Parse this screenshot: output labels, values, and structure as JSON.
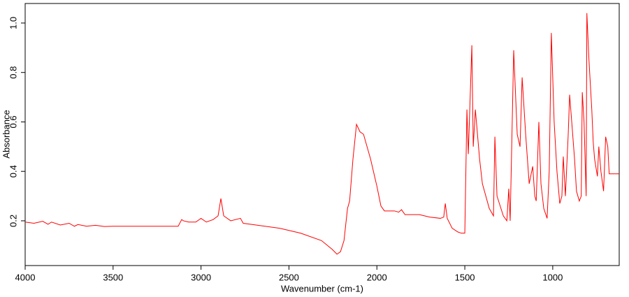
{
  "chart_data": {
    "type": "line",
    "x_label": "Wavenumber (cm-1)",
    "y_label": "Absorbance",
    "xlim": [
      4000,
      622
    ],
    "ylim": [
      0.019,
      1.079
    ],
    "xticks": [
      4000,
      3500,
      3000,
      2500,
      2000,
      1500,
      1000
    ],
    "yticks": [
      0.2,
      0.4,
      0.6,
      0.8,
      {
        "value": 1,
        "label": "1.0"
      }
    ],
    "reversed_x": true,
    "series": [
      {
        "name": "Absorbance",
        "color": "#ff0000",
        "x": [
          4000,
          3950,
          3900,
          3870,
          3850,
          3800,
          3750,
          3720,
          3700,
          3650,
          3600,
          3550,
          3500,
          3300,
          3130,
          3110,
          3100,
          3070,
          3030,
          3000,
          2970,
          2931,
          2903,
          2887,
          2871,
          2831,
          2776,
          2760,
          2553,
          2434,
          2315,
          2255,
          2227,
          2207,
          2187,
          2167,
          2155,
          2136,
          2116,
          2096,
          2076,
          2036,
          2000,
          1977,
          1957,
          1900,
          1876,
          1860,
          1840,
          1758,
          1700,
          1639,
          1620,
          1611,
          1600,
          1572,
          1540,
          1520,
          1500,
          1488,
          1480,
          1460,
          1452,
          1440,
          1428,
          1416,
          1400,
          1361,
          1337,
          1329,
          1317,
          1281,
          1261,
          1250,
          1242,
          1222,
          1202,
          1186,
          1174,
          1154,
          1134,
          1114,
          1102,
          1094,
          1079,
          1067,
          1051,
          1032,
          1020,
          1008,
          992,
          976,
          960,
          948,
          940,
          928,
          912,
          904,
          892,
          876,
          865,
          849,
          838,
          832,
          822,
          810,
          806,
          794,
          778,
          770,
          762,
          746,
          738,
          726,
          711,
          699,
          687,
          679,
          622
        ],
        "values": [
          0.195,
          0.19,
          0.198,
          0.186,
          0.195,
          0.183,
          0.19,
          0.178,
          0.185,
          0.178,
          0.182,
          0.177,
          0.178,
          0.178,
          0.178,
          0.205,
          0.2,
          0.195,
          0.195,
          0.21,
          0.195,
          0.205,
          0.22,
          0.29,
          0.22,
          0.2,
          0.21,
          0.19,
          0.17,
          0.15,
          0.12,
          0.085,
          0.065,
          0.075,
          0.12,
          0.25,
          0.28,
          0.45,
          0.59,
          0.56,
          0.55,
          0.45,
          0.34,
          0.26,
          0.24,
          0.24,
          0.235,
          0.245,
          0.225,
          0.225,
          0.215,
          0.21,
          0.215,
          0.27,
          0.21,
          0.17,
          0.155,
          0.15,
          0.15,
          0.65,
          0.47,
          0.91,
          0.5,
          0.65,
          0.55,
          0.45,
          0.35,
          0.25,
          0.22,
          0.54,
          0.3,
          0.22,
          0.2,
          0.33,
          0.2,
          0.89,
          0.55,
          0.5,
          0.78,
          0.55,
          0.35,
          0.42,
          0.3,
          0.28,
          0.6,
          0.35,
          0.25,
          0.21,
          0.4,
          0.96,
          0.6,
          0.4,
          0.27,
          0.3,
          0.46,
          0.3,
          0.55,
          0.71,
          0.6,
          0.45,
          0.32,
          0.28,
          0.3,
          0.72,
          0.6,
          0.3,
          1.04,
          0.85,
          0.65,
          0.52,
          0.45,
          0.38,
          0.5,
          0.4,
          0.32,
          0.54,
          0.5,
          0.39,
          0.39
        ]
      }
    ]
  }
}
